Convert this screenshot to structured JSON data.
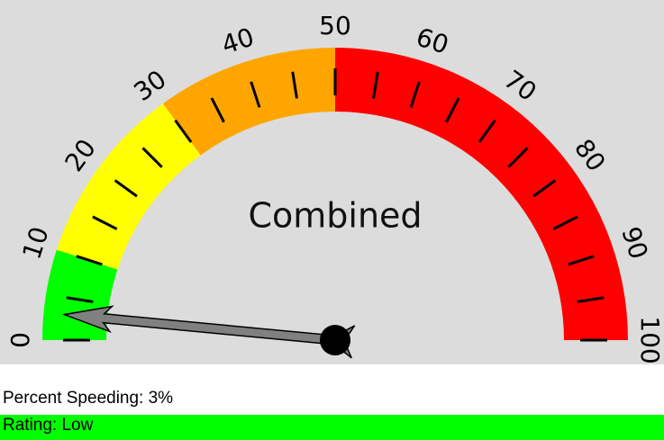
{
  "chart_data": {
    "type": "gauge",
    "title": "Combined",
    "lim": [
      0,
      100
    ],
    "value": 3,
    "bands": [
      {
        "from": 0,
        "to": 10,
        "color": "#00ff00"
      },
      {
        "from": 10,
        "to": 30,
        "color": "#ffff00"
      },
      {
        "from": 30,
        "to": 50,
        "color": "#ffa500"
      },
      {
        "from": 50,
        "to": 100,
        "color": "#ff0000"
      }
    ],
    "ticks": [
      0,
      10,
      20,
      30,
      40,
      50,
      60,
      70,
      80,
      90,
      100
    ],
    "minor_ticks": [
      0,
      5,
      10,
      15,
      20,
      25,
      30,
      35,
      40,
      45,
      50,
      55,
      60,
      65,
      70,
      75,
      80,
      85,
      90,
      95,
      100
    ],
    "needle_color": "#808080"
  },
  "readout": "Percent Speeding: 3%",
  "rating": {
    "text": "Rating: Low",
    "color": "#00ff00"
  }
}
